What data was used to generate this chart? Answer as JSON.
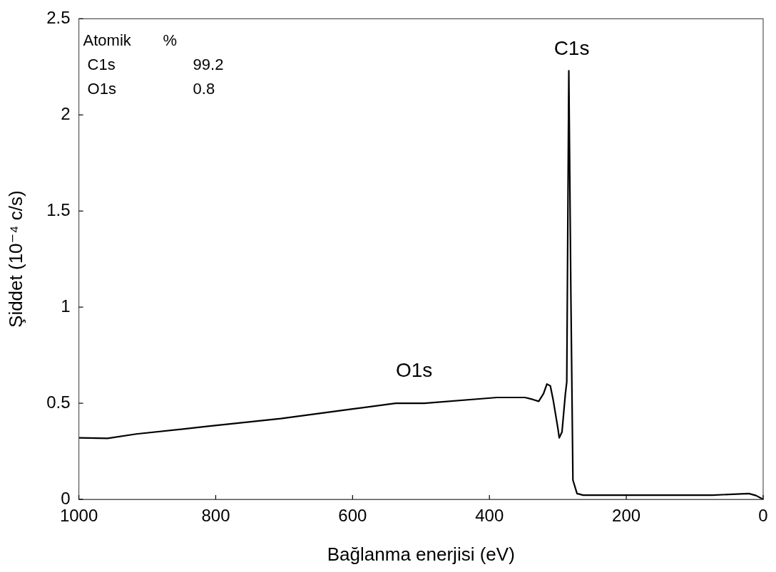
{
  "chart_data": {
    "type": "line",
    "xlabel": "Bağlanma enerjisi (eV)",
    "ylabel": "Şiddet (10⁻⁴ c/s)",
    "x": [
      1000,
      958,
      916,
      811,
      705,
      600,
      537,
      495,
      389,
      348,
      337,
      328,
      321,
      316,
      311,
      307,
      300,
      298,
      294,
      289,
      287,
      284,
      281,
      278,
      272,
      263,
      74,
      21,
      10.5,
      0
    ],
    "series": [
      {
        "color": "#000000",
        "values": [
          0.32,
          0.317,
          0.34,
          0.38,
          0.42,
          0.47,
          0.5,
          0.5,
          0.53,
          0.53,
          0.52,
          0.51,
          0.55,
          0.6,
          0.59,
          0.52,
          0.37,
          0.32,
          0.35,
          0.55,
          0.61,
          2.23,
          1.07,
          0.1,
          0.03,
          0.022,
          0.022,
          0.03,
          0.02,
          0
        ]
      }
    ],
    "xlim": [
      1000,
      0
    ],
    "xticks": [
      1000,
      800,
      600,
      400,
      200,
      0
    ],
    "ylim": [
      0,
      2.5
    ],
    "yticks": [
      0,
      0.5,
      1,
      1.5,
      2,
      2.5
    ],
    "grid": false,
    "legend": false,
    "marker": "none",
    "line_style": "solid",
    "annotations": [
      "C1s",
      "O1s",
      "Atomik",
      "%",
      "C1s",
      "99.2",
      "O1s",
      "0.8"
    ]
  }
}
